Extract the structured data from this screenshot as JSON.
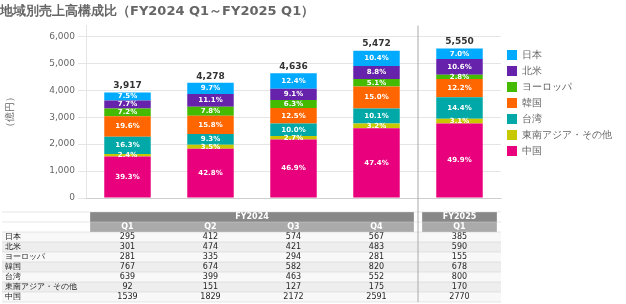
{
  "chart_data": {
    "type": "bar",
    "title": "地域別売上高構成比（FY2024 Q1～FY2025 Q1）",
    "ylabel": "（億円）",
    "categories": [
      "Q1",
      "Q2",
      "Q3",
      "Q4",
      "Q1"
    ],
    "category_groups": [
      "FY2024",
      "FY2024",
      "FY2024",
      "FY2024",
      "FY2025"
    ],
    "stacked": true,
    "grid": true,
    "legend": "right",
    "ylim": [
      0,
      6400
    ],
    "yticks": [
      0,
      {
        "value": 1000,
        "label": "1,000"
      },
      {
        "value": 2000,
        "label": "2,000"
      },
      {
        "value": 3000,
        "label": "3,000"
      },
      {
        "value": 4000,
        "label": "4,000"
      },
      {
        "value": 5000,
        "label": "5,000"
      },
      {
        "value": 6000,
        "label": "6,000"
      }
    ],
    "totals": [
      3917,
      4278,
      4636,
      5472,
      5550
    ],
    "total_labels": [
      "3,917",
      "4,278",
      "4,636",
      "5,472",
      "5,550"
    ],
    "series": [
      {
        "name": "中国",
        "color": "#e8007d",
        "values": [
          1539,
          1829,
          2172,
          2591,
          2770
        ],
        "share_labels": [
          "39.3%",
          "42.8%",
          "46.9%",
          "47.4%",
          "49.9%"
        ]
      },
      {
        "name": "東南アジア・その他",
        "color": "#c8c800",
        "values": [
          92,
          151,
          127,
          175,
          170
        ],
        "share_labels": [
          "2.4%",
          "3.5%",
          "2.7%",
          "3.2%",
          "3.1%"
        ]
      },
      {
        "name": "台湾",
        "color": "#00a8a8",
        "values": [
          639,
          399,
          463,
          552,
          800
        ],
        "share_labels": [
          "16.3%",
          "9.3%",
          "10.0%",
          "10.1%",
          "14.4%"
        ]
      },
      {
        "name": "韓国",
        "color": "#ff6600",
        "values": [
          767,
          674,
          582,
          820,
          678
        ],
        "share_labels": [
          "19.6%",
          "15.8%",
          "12.5%",
          "15.0%",
          "12.2%"
        ]
      },
      {
        "name": "ヨーロッパ",
        "color": "#44bb00",
        "values": [
          281,
          335,
          294,
          281,
          155
        ],
        "share_labels": [
          "7.2%",
          "7.8%",
          "6.3%",
          "5.1%",
          "2.8%"
        ]
      },
      {
        "name": "北米",
        "color": "#6622aa",
        "values": [
          301,
          474,
          421,
          483,
          590
        ],
        "share_labels": [
          "7.7%",
          "11.1%",
          "9.1%",
          "8.8%",
          "10.6%"
        ]
      },
      {
        "name": "日本",
        "color": "#00aaff",
        "values": [
          295,
          412,
          574,
          567,
          385
        ],
        "share_labels": [
          "7.5%",
          "9.7%",
          "12.4%",
          "10.4%",
          "7.0%"
        ]
      }
    ]
  }
}
